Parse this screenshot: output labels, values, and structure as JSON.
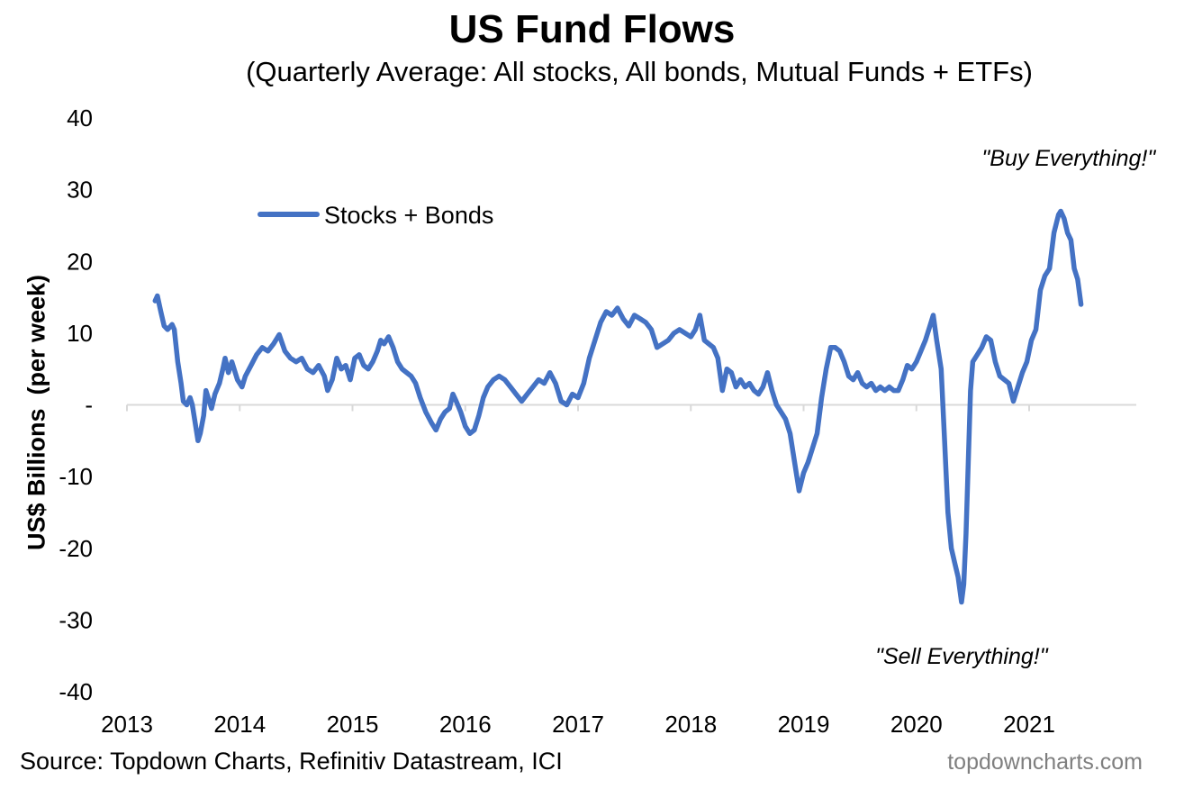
{
  "chart_data": {
    "type": "line",
    "title": "US Fund Flows",
    "subtitle": "(Quarterly Average: All stocks, All bonds, Mutual Funds + ETFs)",
    "ylabel": "US$ Billions  (per week)",
    "ylim": [
      -40,
      40
    ],
    "yticks": [
      40,
      30,
      20,
      10,
      0,
      -10,
      -20,
      -30,
      -40
    ],
    "ytick_labels": [
      "40",
      "30",
      "20",
      "10",
      "-",
      "-10",
      "-20",
      "-30",
      "-40"
    ],
    "xlim": [
      2013,
      2021.95
    ],
    "xticks": [
      "2013",
      "2014",
      "2015",
      "2016",
      "2017",
      "2018",
      "2019",
      "2020",
      "2021"
    ],
    "legend": {
      "position": "top-left",
      "label": "Stocks + Bonds"
    },
    "annotations": [
      {
        "text": "\"Buy Everything!\"",
        "x": 2021.35,
        "y": 34.5
      },
      {
        "text": "\"Sell Everything!\"",
        "x": 2020.4,
        "y": -35
      }
    ],
    "series": [
      {
        "name": "Stocks + Bonds",
        "color": "#4472c4",
        "points": [
          [
            2013.25,
            14.5
          ],
          [
            2013.27,
            15.2
          ],
          [
            2013.3,
            13.0
          ],
          [
            2013.33,
            11.0
          ],
          [
            2013.36,
            10.5
          ],
          [
            2013.4,
            11.2
          ],
          [
            2013.42,
            10.5
          ],
          [
            2013.45,
            6.0
          ],
          [
            2013.48,
            3.0
          ],
          [
            2013.5,
            0.5
          ],
          [
            2013.53,
            0.0
          ],
          [
            2013.56,
            1.0
          ],
          [
            2013.58,
            0.0
          ],
          [
            2013.61,
            -3.0
          ],
          [
            2013.63,
            -5.0
          ],
          [
            2013.65,
            -4.0
          ],
          [
            2013.68,
            -1.5
          ],
          [
            2013.7,
            2.0
          ],
          [
            2013.72,
            1.0
          ],
          [
            2013.75,
            -0.5
          ],
          [
            2013.78,
            1.5
          ],
          [
            2013.82,
            3.0
          ],
          [
            2013.85,
            5.0
          ],
          [
            2013.87,
            6.5
          ],
          [
            2013.9,
            4.5
          ],
          [
            2013.93,
            6.0
          ],
          [
            2013.95,
            5.0
          ],
          [
            2013.98,
            3.5
          ],
          [
            2014.02,
            2.5
          ],
          [
            2014.05,
            4.0
          ],
          [
            2014.1,
            5.5
          ],
          [
            2014.15,
            7.0
          ],
          [
            2014.2,
            8.0
          ],
          [
            2014.25,
            7.5
          ],
          [
            2014.3,
            8.5
          ],
          [
            2014.35,
            9.8
          ],
          [
            2014.4,
            7.5
          ],
          [
            2014.45,
            6.5
          ],
          [
            2014.5,
            6.0
          ],
          [
            2014.55,
            6.5
          ],
          [
            2014.6,
            5.0
          ],
          [
            2014.65,
            4.5
          ],
          [
            2014.7,
            5.5
          ],
          [
            2014.75,
            4.0
          ],
          [
            2014.78,
            2.0
          ],
          [
            2014.82,
            3.5
          ],
          [
            2014.86,
            6.5
          ],
          [
            2014.9,
            5.0
          ],
          [
            2014.94,
            5.5
          ],
          [
            2014.98,
            3.5
          ],
          [
            2015.02,
            6.5
          ],
          [
            2015.06,
            7.0
          ],
          [
            2015.1,
            5.5
          ],
          [
            2015.14,
            5.0
          ],
          [
            2015.18,
            6.0
          ],
          [
            2015.22,
            7.5
          ],
          [
            2015.25,
            9.0
          ],
          [
            2015.28,
            8.5
          ],
          [
            2015.32,
            9.5
          ],
          [
            2015.36,
            8.0
          ],
          [
            2015.4,
            6.0
          ],
          [
            2015.44,
            5.0
          ],
          [
            2015.48,
            4.5
          ],
          [
            2015.52,
            4.0
          ],
          [
            2015.56,
            3.0
          ],
          [
            2015.6,
            1.0
          ],
          [
            2015.65,
            -1.0
          ],
          [
            2015.7,
            -2.5
          ],
          [
            2015.74,
            -3.5
          ],
          [
            2015.78,
            -2.0
          ],
          [
            2015.82,
            -1.0
          ],
          [
            2015.86,
            -0.5
          ],
          [
            2015.89,
            1.5
          ],
          [
            2015.92,
            0.5
          ],
          [
            2015.96,
            -1.0
          ],
          [
            2016.0,
            -3.0
          ],
          [
            2016.04,
            -4.0
          ],
          [
            2016.08,
            -3.5
          ],
          [
            2016.12,
            -1.5
          ],
          [
            2016.16,
            1.0
          ],
          [
            2016.2,
            2.5
          ],
          [
            2016.25,
            3.5
          ],
          [
            2016.3,
            4.0
          ],
          [
            2016.35,
            3.5
          ],
          [
            2016.4,
            2.5
          ],
          [
            2016.45,
            1.5
          ],
          [
            2016.5,
            0.5
          ],
          [
            2016.55,
            1.5
          ],
          [
            2016.6,
            2.5
          ],
          [
            2016.65,
            3.5
          ],
          [
            2016.7,
            3.0
          ],
          [
            2016.75,
            4.5
          ],
          [
            2016.8,
            3.0
          ],
          [
            2016.85,
            0.5
          ],
          [
            2016.9,
            0.0
          ],
          [
            2016.95,
            1.5
          ],
          [
            2017.0,
            1.0
          ],
          [
            2017.05,
            3.0
          ],
          [
            2017.1,
            6.5
          ],
          [
            2017.15,
            9.0
          ],
          [
            2017.2,
            11.5
          ],
          [
            2017.25,
            13.0
          ],
          [
            2017.3,
            12.5
          ],
          [
            2017.35,
            13.5
          ],
          [
            2017.4,
            12.0
          ],
          [
            2017.45,
            11.0
          ],
          [
            2017.5,
            12.5
          ],
          [
            2017.55,
            12.0
          ],
          [
            2017.6,
            11.5
          ],
          [
            2017.65,
            10.5
          ],
          [
            2017.7,
            8.0
          ],
          [
            2017.75,
            8.5
          ],
          [
            2017.8,
            9.0
          ],
          [
            2017.85,
            10.0
          ],
          [
            2017.9,
            10.5
          ],
          [
            2017.95,
            10.0
          ],
          [
            2018.0,
            9.5
          ],
          [
            2018.04,
            10.5
          ],
          [
            2018.08,
            12.5
          ],
          [
            2018.12,
            9.0
          ],
          [
            2018.16,
            8.5
          ],
          [
            2018.2,
            8.0
          ],
          [
            2018.24,
            6.5
          ],
          [
            2018.28,
            2.0
          ],
          [
            2018.32,
            5.0
          ],
          [
            2018.36,
            4.5
          ],
          [
            2018.4,
            2.5
          ],
          [
            2018.44,
            3.5
          ],
          [
            2018.48,
            2.5
          ],
          [
            2018.52,
            3.0
          ],
          [
            2018.56,
            2.0
          ],
          [
            2018.6,
            1.5
          ],
          [
            2018.64,
            2.5
          ],
          [
            2018.68,
            4.5
          ],
          [
            2018.72,
            2.0
          ],
          [
            2018.76,
            0.0
          ],
          [
            2018.8,
            -1.0
          ],
          [
            2018.84,
            -2.0
          ],
          [
            2018.88,
            -4.0
          ],
          [
            2018.92,
            -8.0
          ],
          [
            2018.96,
            -12.0
          ],
          [
            2019.0,
            -9.5
          ],
          [
            2019.04,
            -8.0
          ],
          [
            2019.08,
            -6.0
          ],
          [
            2019.12,
            -4.0
          ],
          [
            2019.16,
            1.0
          ],
          [
            2019.2,
            5.0
          ],
          [
            2019.24,
            8.0
          ],
          [
            2019.28,
            8.0
          ],
          [
            2019.32,
            7.5
          ],
          [
            2019.36,
            6.0
          ],
          [
            2019.4,
            4.0
          ],
          [
            2019.44,
            3.5
          ],
          [
            2019.48,
            4.5
          ],
          [
            2019.52,
            3.0
          ],
          [
            2019.56,
            2.5
          ],
          [
            2019.6,
            3.0
          ],
          [
            2019.64,
            2.0
          ],
          [
            2019.68,
            2.5
          ],
          [
            2019.72,
            2.0
          ],
          [
            2019.76,
            2.5
          ],
          [
            2019.8,
            2.0
          ],
          [
            2019.84,
            2.0
          ],
          [
            2019.88,
            3.5
          ],
          [
            2019.92,
            5.5
          ],
          [
            2019.96,
            5.0
          ],
          [
            2020.0,
            6.0
          ],
          [
            2020.04,
            7.5
          ],
          [
            2020.08,
            9.0
          ],
          [
            2020.12,
            11.0
          ],
          [
            2020.15,
            12.5
          ],
          [
            2020.18,
            9.0
          ],
          [
            2020.22,
            5.0
          ],
          [
            2020.25,
            -5.0
          ],
          [
            2020.28,
            -15.0
          ],
          [
            2020.31,
            -20.0
          ],
          [
            2020.34,
            -22.0
          ],
          [
            2020.37,
            -24.0
          ],
          [
            2020.4,
            -27.5
          ],
          [
            2020.42,
            -25.0
          ],
          [
            2020.44,
            -18.0
          ],
          [
            2020.46,
            -8.0
          ],
          [
            2020.48,
            2.0
          ],
          [
            2020.5,
            6.0
          ],
          [
            2020.54,
            7.0
          ],
          [
            2020.58,
            8.0
          ],
          [
            2020.62,
            9.5
          ],
          [
            2020.66,
            9.0
          ],
          [
            2020.7,
            6.0
          ],
          [
            2020.74,
            4.0
          ],
          [
            2020.78,
            3.5
          ],
          [
            2020.82,
            3.0
          ],
          [
            2020.86,
            0.5
          ],
          [
            2020.9,
            2.5
          ],
          [
            2020.94,
            4.5
          ],
          [
            2020.98,
            6.0
          ],
          [
            2021.02,
            9.0
          ],
          [
            2021.06,
            10.5
          ],
          [
            2021.1,
            16.0
          ],
          [
            2021.14,
            18.0
          ],
          [
            2021.18,
            19.0
          ],
          [
            2021.22,
            24.0
          ],
          [
            2021.26,
            26.5
          ],
          [
            2021.28,
            27.0
          ],
          [
            2021.31,
            26.0
          ],
          [
            2021.34,
            24.0
          ],
          [
            2021.37,
            23.0
          ],
          [
            2021.4,
            19.0
          ],
          [
            2021.43,
            17.5
          ],
          [
            2021.46,
            14.0
          ]
        ]
      }
    ]
  },
  "footer": {
    "source": "Source: Topdown Charts, Refinitiv Datastream, ICI",
    "watermark": "topdowncharts.com"
  }
}
